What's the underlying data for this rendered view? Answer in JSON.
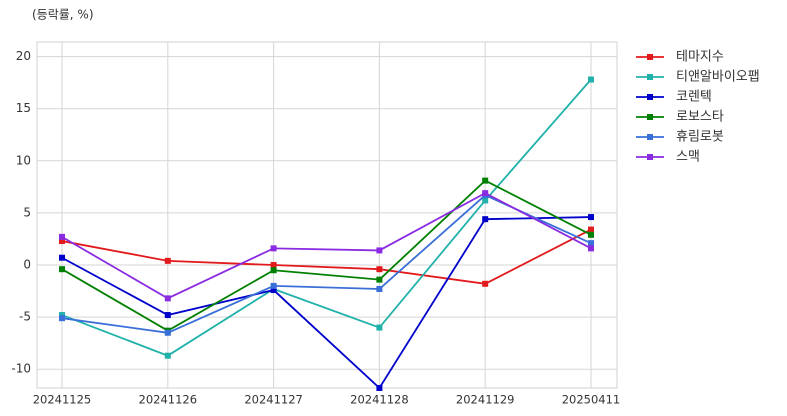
{
  "chart_data": {
    "type": "line",
    "unit_label": "(등락률, %)",
    "categories": [
      "20241125",
      "20241126",
      "20241127",
      "20241128",
      "20241129",
      "20250411"
    ],
    "series": [
      {
        "name": "테마지수",
        "color": "#e31a1c",
        "values": [
          2.3,
          0.4,
          0.0,
          -0.4,
          -1.8,
          3.4
        ]
      },
      {
        "name": "티앤알바이오팹",
        "color": "#20b2aa",
        "values": [
          -4.8,
          -8.7,
          -2.3,
          -6.0,
          6.2,
          17.8
        ]
      },
      {
        "name": "코렌텍",
        "color": "#0000cd",
        "values": [
          0.7,
          -4.8,
          -2.4,
          -11.8,
          4.4,
          4.6
        ]
      },
      {
        "name": "로보스타",
        "color": "#008000",
        "values": [
          -0.4,
          -6.3,
          -0.5,
          -1.4,
          8.1,
          2.9
        ]
      },
      {
        "name": "휴림로봇",
        "color": "#3a6fd8",
        "values": [
          -5.1,
          -6.5,
          -2.0,
          -2.3,
          6.7,
          2.1
        ]
      },
      {
        "name": "스맥",
        "color": "#8a2be2",
        "values": [
          2.7,
          -3.2,
          1.6,
          1.4,
          6.9,
          1.6
        ]
      }
    ],
    "ylim": [
      -11.8,
      21.4
    ],
    "yticks": [
      -10,
      -5,
      0,
      5,
      10,
      15,
      20
    ],
    "grid": true,
    "legend": "outside-right"
  }
}
